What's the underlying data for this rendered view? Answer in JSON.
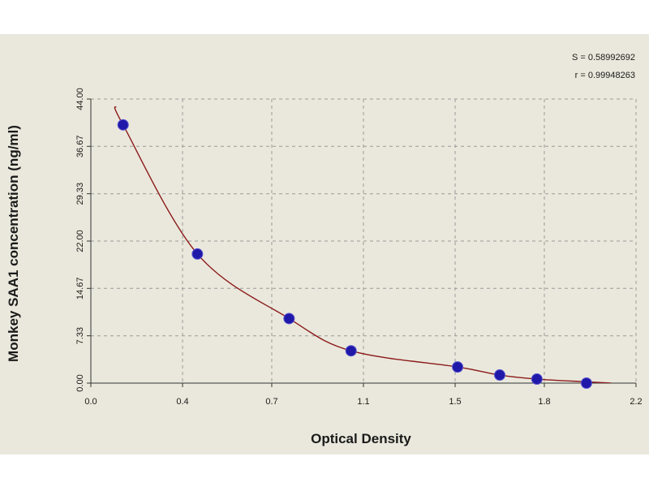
{
  "chart_data": {
    "type": "scatter",
    "title": "",
    "xlabel": "Optical Density",
    "ylabel": "Monkey SAA1 concentration (ng/ml)",
    "xlim": [
      0.0,
      2.2
    ],
    "ylim": [
      0.0,
      44.0
    ],
    "x_ticks": [
      "0.0",
      "0.4",
      "0.7",
      "1.1",
      "1.5",
      "1.8",
      "2.2"
    ],
    "x_tick_values": [
      0.0,
      0.37,
      0.73,
      1.1,
      1.47,
      1.83,
      2.2
    ],
    "y_ticks": [
      "0.00",
      "7.33",
      "14.67",
      "22.00",
      "29.33",
      "36.67",
      "44.00"
    ],
    "y_tick_values": [
      0.0,
      7.33,
      14.67,
      22.0,
      29.33,
      36.67,
      44.0
    ],
    "grid": true,
    "series": [
      {
        "points": [
          {
            "x": 0.13,
            "y": 40.0
          },
          {
            "x": 0.43,
            "y": 20.0
          },
          {
            "x": 0.8,
            "y": 10.0
          },
          {
            "x": 1.05,
            "y": 5.0
          },
          {
            "x": 1.48,
            "y": 2.5
          },
          {
            "x": 1.65,
            "y": 1.25
          },
          {
            "x": 1.8,
            "y": 0.625
          },
          {
            "x": 2.0,
            "y": 0.0
          }
        ]
      }
    ],
    "fit_curve_x_range": [
      0.1,
      2.2
    ],
    "stats": {
      "s": "S = 0.58992692",
      "r": "r = 0.99948263"
    },
    "colors": {
      "background": "#eae8dc",
      "grid": "#9a9a9a",
      "point": "#1f18a8",
      "curve": "#8b1a1a",
      "axis": "#333333"
    }
  }
}
